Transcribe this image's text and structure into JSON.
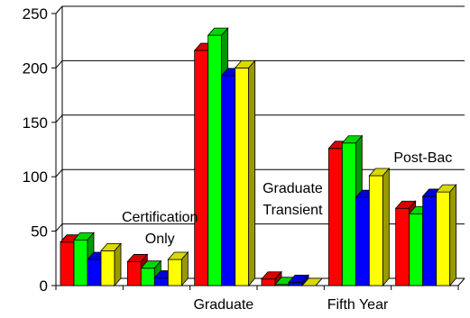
{
  "chart_data": {
    "type": "bar",
    "title": "",
    "xlabel": "",
    "ylabel": "",
    "ylim": [
      0,
      250
    ],
    "yticks": [
      0,
      50,
      100,
      150,
      200,
      250
    ],
    "grid": true,
    "legend": "none",
    "style": "3d",
    "categories": [
      "",
      "Certification Only",
      "Graduate",
      "Graduate Transient",
      "Fifth Year",
      "Post-Bac"
    ],
    "series": [
      {
        "color": "#ff0000",
        "values": [
          40,
          22,
          216,
          6,
          126,
          71
        ]
      },
      {
        "color": "#00ff00",
        "values": [
          42,
          16,
          230,
          1,
          131,
          66
        ]
      },
      {
        "color": "#0000ff",
        "values": [
          24,
          7,
          193,
          3,
          81,
          82
        ]
      },
      {
        "color": "#ffff00",
        "values": [
          32,
          24,
          200,
          0,
          101,
          86
        ]
      }
    ]
  }
}
